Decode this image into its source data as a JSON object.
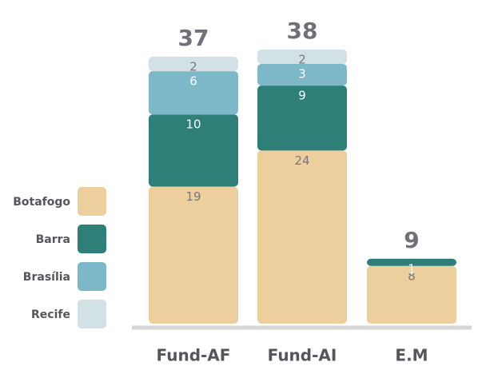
{
  "chart_data": {
    "type": "stacked_bar",
    "categories": [
      "Fund-AF",
      "Fund-AI",
      "E.M"
    ],
    "series": [
      {
        "name": "Botafogo",
        "color": "#edcf9e",
        "values": [
          19,
          24,
          8
        ]
      },
      {
        "name": "Barra",
        "color": "#2e7f78",
        "values": [
          10,
          9,
          1
        ]
      },
      {
        "name": "Brasília",
        "color": "#7cb8c8",
        "values": [
          6,
          3,
          null
        ]
      },
      {
        "name": "Recife",
        "color": "#d2e1e5",
        "values": [
          2,
          2,
          null
        ]
      }
    ],
    "totals": [
      37,
      38,
      9
    ]
  }
}
